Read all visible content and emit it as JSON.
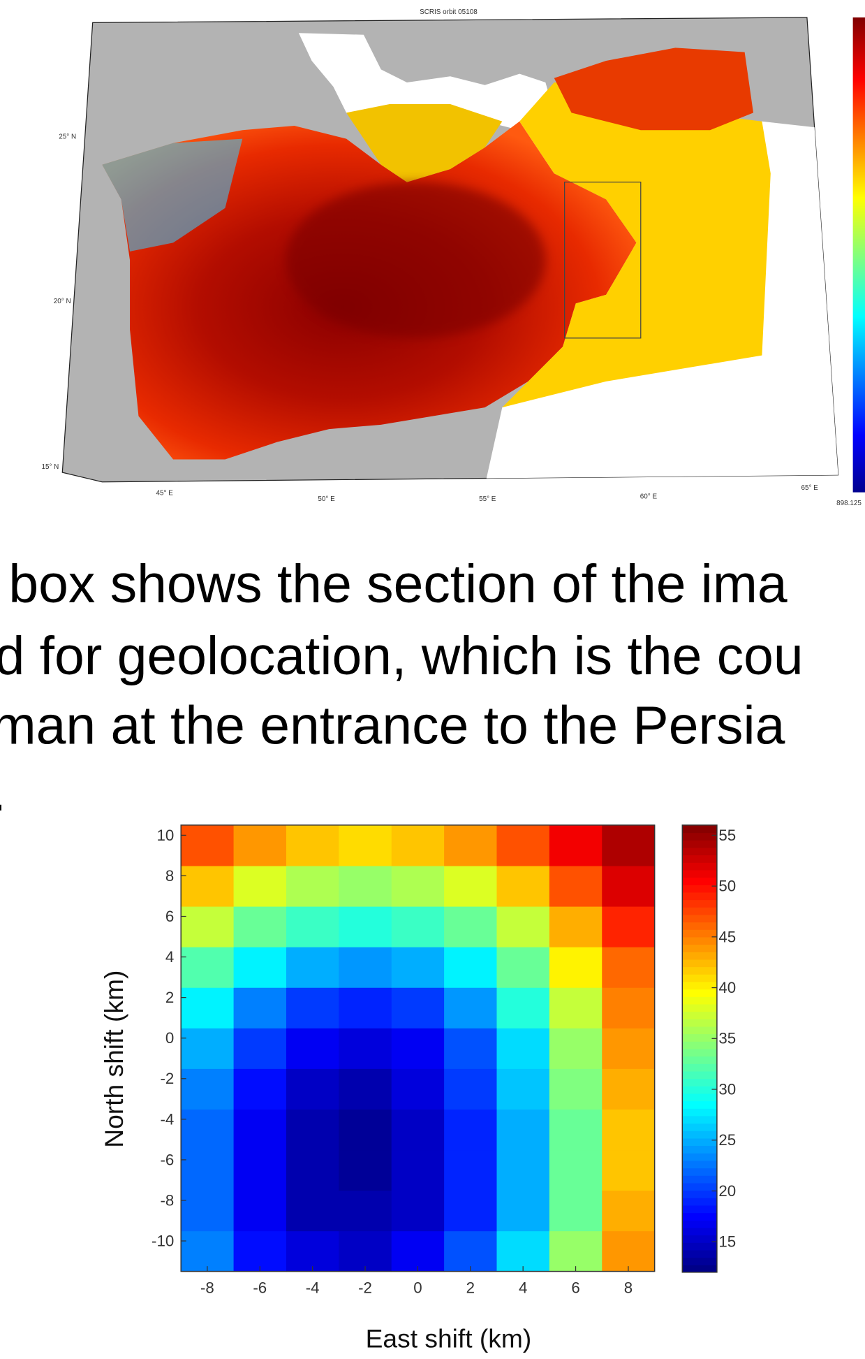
{
  "map": {
    "title": "SCRIS orbit 05108",
    "lat_labels": [
      "25° N",
      "20° N",
      "15° N"
    ],
    "lon_labels": [
      "45° E",
      "50° E",
      "55° E",
      "60° E",
      "65° E"
    ],
    "colorbar_label": "898.125"
  },
  "text_lines": [
    "box shows the section of the ima",
    "d for geolocation, which is the cou",
    "man at the entrance to the Persia",
    "."
  ],
  "chart_data": {
    "type": "heatmap",
    "xlabel": "East shift (km)",
    "ylabel": "North shift (km)",
    "colormap": "jet",
    "x_bins": [
      -9,
      -7,
      -5,
      -3,
      -1,
      1,
      3,
      5,
      7,
      9
    ],
    "y_bins": [
      -11.5,
      -9.5,
      -7.5,
      -5.5,
      -3.5,
      -1.5,
      0.5,
      2.5,
      4.5,
      6.5,
      8.5,
      10.5
    ],
    "values": [
      [
        23,
        18,
        16,
        15,
        17,
        21,
        27,
        35,
        44
      ],
      [
        22,
        17,
        14,
        14,
        15,
        19,
        25,
        33,
        43
      ],
      [
        22,
        17,
        14,
        13,
        15,
        19,
        25,
        33,
        42
      ],
      [
        22,
        17,
        14,
        13,
        15,
        19,
        25,
        33,
        42
      ],
      [
        23,
        18,
        15,
        14,
        16,
        20,
        26,
        34,
        43
      ],
      [
        25,
        20,
        17,
        16,
        17,
        21,
        27,
        35,
        44
      ],
      [
        28,
        23,
        20,
        19,
        20,
        24,
        30,
        37,
        45
      ],
      [
        32,
        28,
        25,
        24,
        25,
        28,
        33,
        40,
        46
      ],
      [
        37,
        33,
        31,
        30,
        31,
        33,
        37,
        43,
        49
      ],
      [
        42,
        38,
        36,
        35,
        36,
        38,
        42,
        47,
        52
      ],
      [
        47,
        44,
        42,
        41,
        42,
        44,
        47,
        51,
        54
      ]
    ],
    "xlim": [
      -9,
      9
    ],
    "ylim": [
      -11.5,
      10.5
    ],
    "xticks": [
      -8,
      -6,
      -4,
      -2,
      0,
      2,
      4,
      6,
      8
    ],
    "yticks": [
      -10,
      -8,
      -6,
      -4,
      -2,
      0,
      2,
      4,
      6,
      8,
      10
    ],
    "clim": [
      12,
      56
    ],
    "colorbar_ticks": [
      15,
      20,
      25,
      30,
      35,
      40,
      45,
      50,
      55
    ]
  }
}
